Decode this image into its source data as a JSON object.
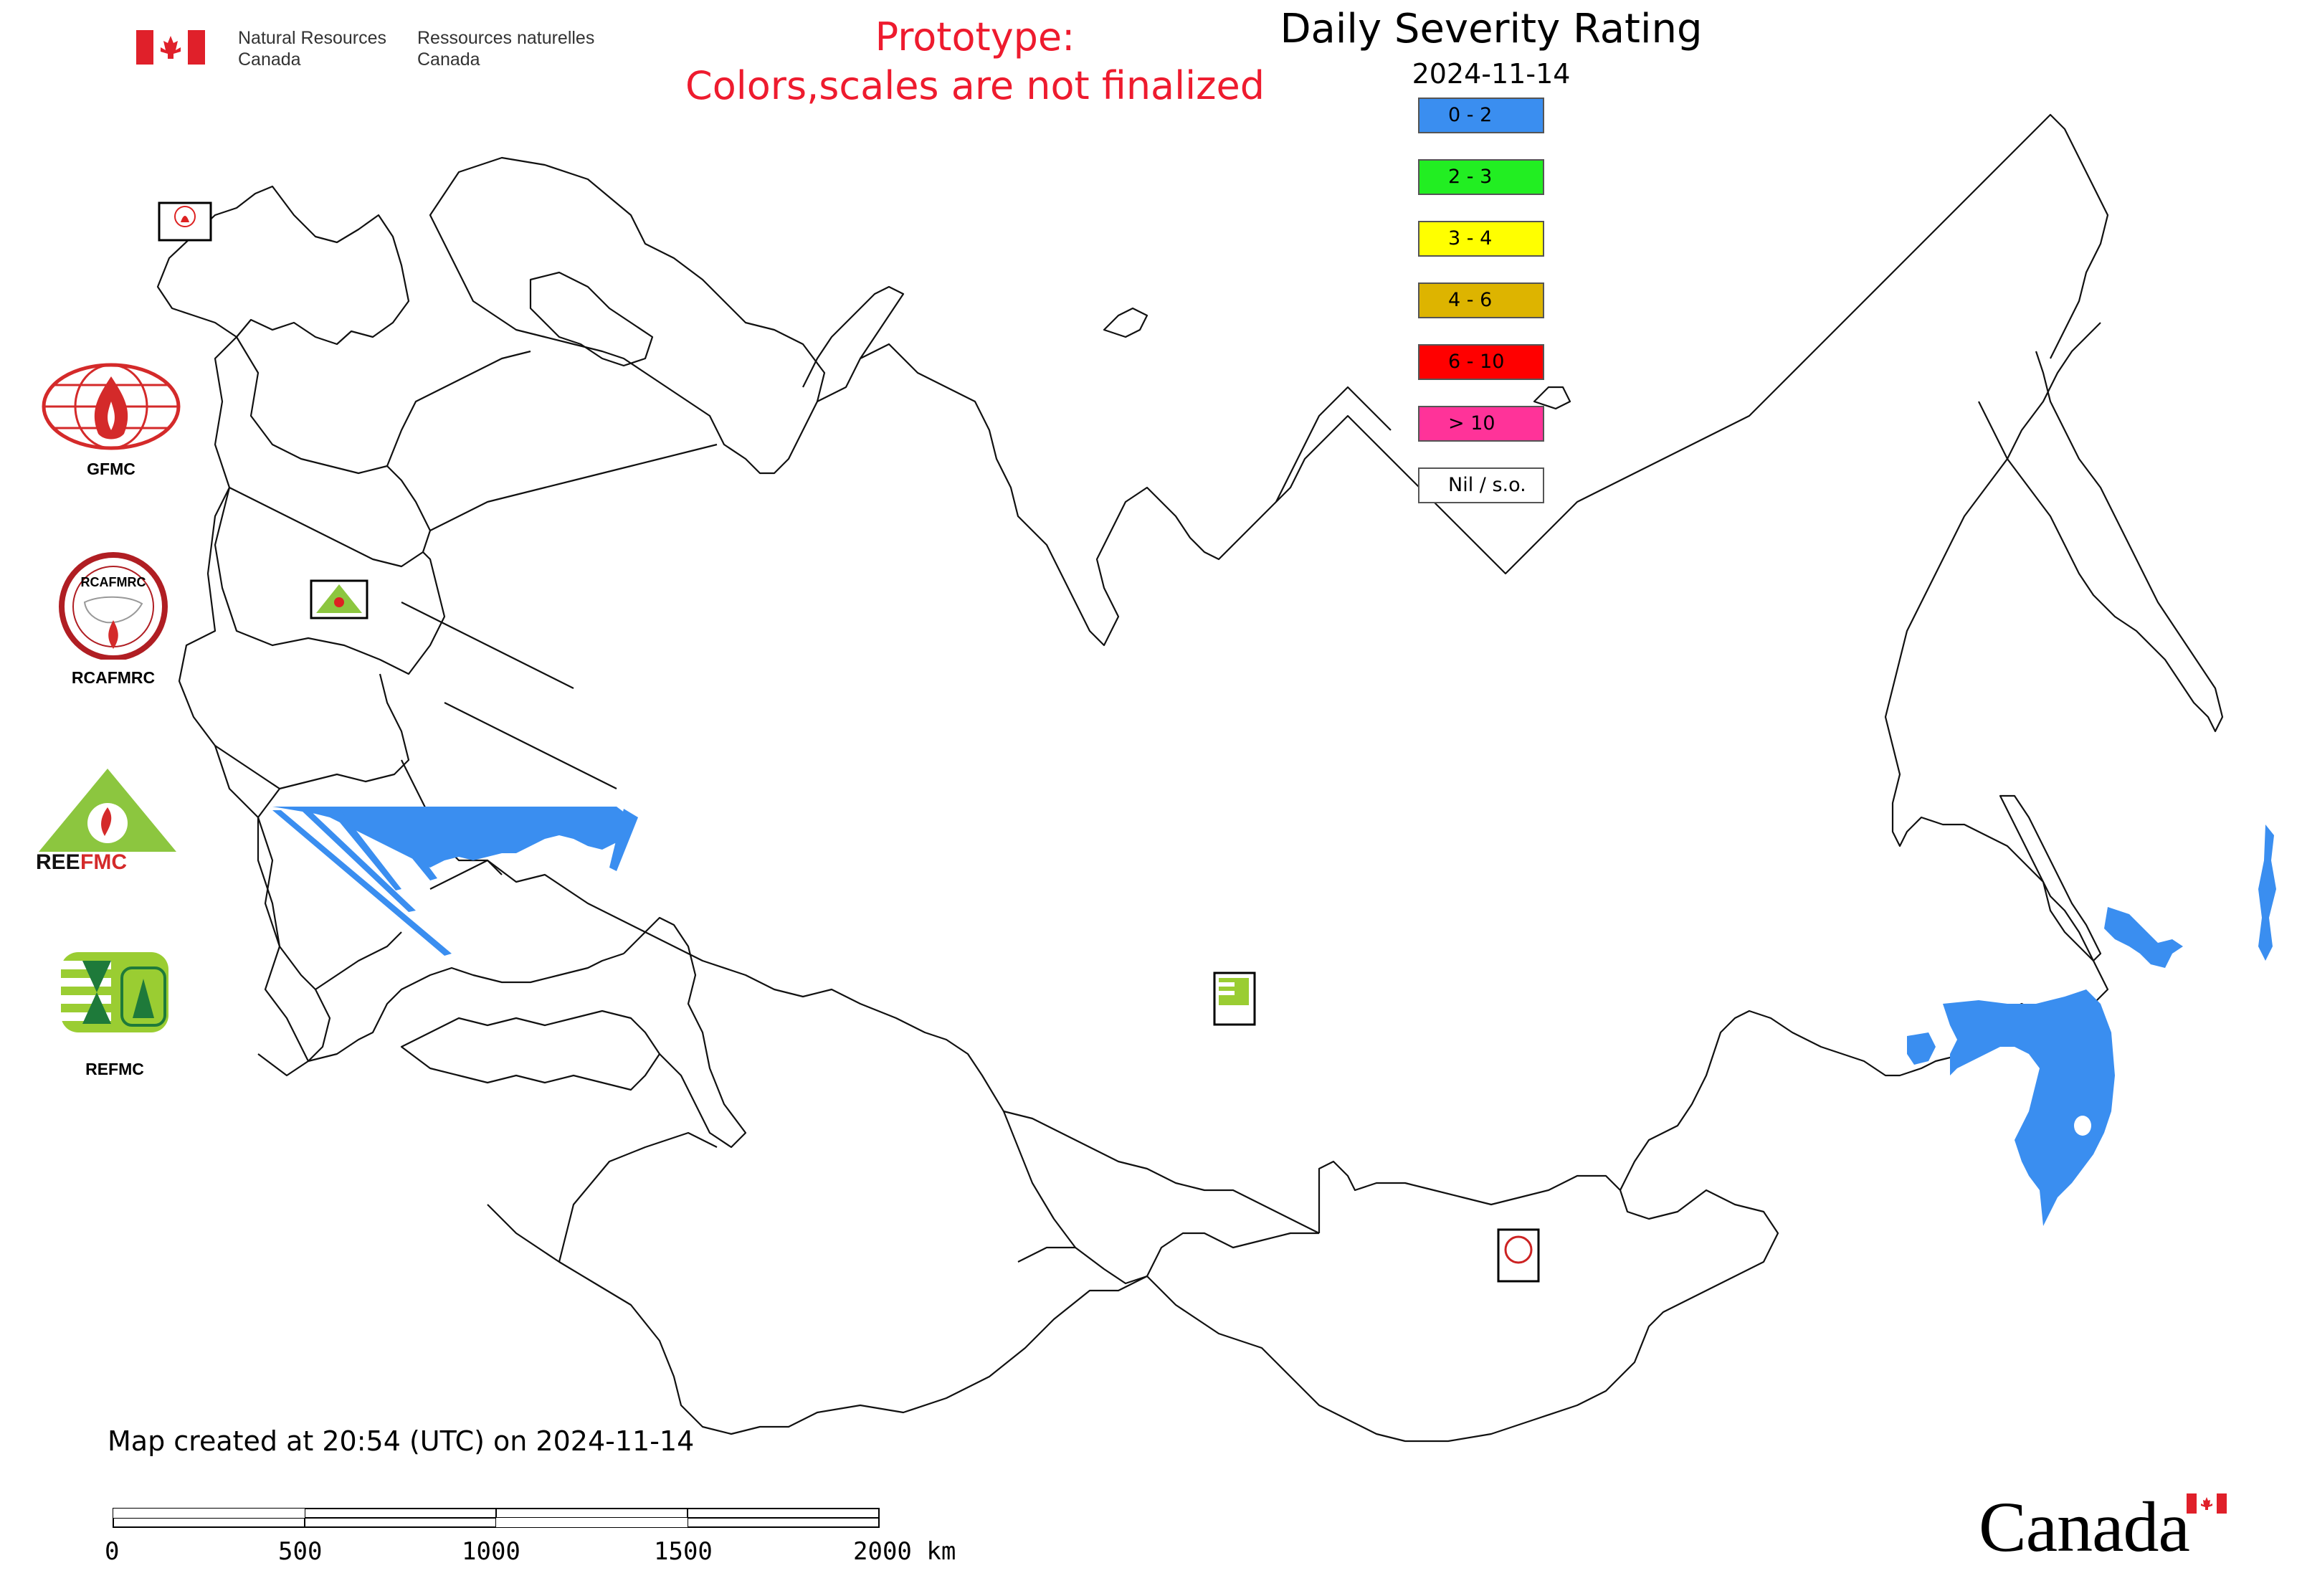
{
  "header": {
    "org_en_line1": "Natural Resources",
    "org_en_line2": "Canada",
    "org_fr_line1": "Ressources naturelles",
    "org_fr_line2": "Canada",
    "flag_icon": "canada-flag-icon"
  },
  "prototype_notice": {
    "line1": "Prototype:",
    "line2": "Colors,scales are not finalized",
    "color": "#ee1b2e"
  },
  "map": {
    "title": "Daily Severity Rating",
    "date": "2024-11-14",
    "created_text": "Map created at 20:54 (UTC) on 2024-11-14"
  },
  "legend": [
    {
      "label": "0 - 2",
      "color": "#3a8ef0"
    },
    {
      "label": "2 - 3",
      "color": "#22ee22"
    },
    {
      "label": "3 - 4",
      "color": "#ffff00"
    },
    {
      "label": "4 - 6",
      "color": "#ddb400"
    },
    {
      "label": "6 - 10",
      "color": "#ff0000"
    },
    {
      "label": "> 10",
      "color": "#ff3399"
    },
    {
      "label": "Nil / s.o.",
      "color": "#ffffff"
    }
  ],
  "logos": [
    {
      "label": "GFMC",
      "icon": "gfmc-logo-icon"
    },
    {
      "label": "RCAFMRC",
      "icon": "rcafmrc-logo-icon"
    },
    {
      "label": "REEFMC",
      "icon": "reefmc-logo-icon"
    },
    {
      "label": "REFMC",
      "icon": "refmc-logo-icon"
    }
  ],
  "map_markers": [
    {
      "label": "GFMC"
    },
    {
      "label": "REEFMC"
    },
    {
      "label": "REFMC"
    },
    {
      "label": "RCAFMRC"
    }
  ],
  "scale_bar": {
    "ticks": [
      "0",
      "500",
      "1000",
      "1500",
      "2000 km"
    ]
  },
  "wordmark": "Canada"
}
